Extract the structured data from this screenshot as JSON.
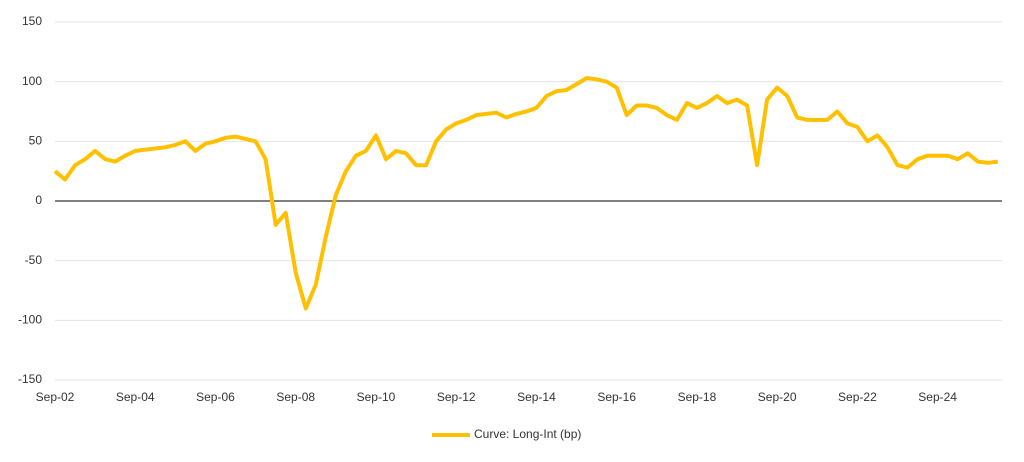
{
  "chart_data": {
    "type": "line",
    "categories": [
      "Sep-02",
      null,
      null,
      null,
      null,
      null,
      null,
      null,
      "Sep-04",
      null,
      null,
      null,
      null,
      null,
      null,
      null,
      "Sep-06",
      null,
      null,
      null,
      null,
      null,
      null,
      null,
      "Sep-08",
      null,
      null,
      null,
      null,
      null,
      null,
      null,
      "Sep-10",
      null,
      null,
      null,
      null,
      null,
      null,
      null,
      "Sep-12",
      null,
      null,
      null,
      null,
      null,
      null,
      null,
      "Sep-14",
      null,
      null,
      null,
      null,
      null,
      null,
      null,
      "Sep-16",
      null,
      null,
      null,
      null,
      null,
      null,
      null,
      "Sep-18",
      null,
      null,
      null,
      null,
      null,
      null,
      null,
      "Sep-20",
      null,
      null,
      null,
      null,
      null,
      null,
      null,
      "Sep-22",
      null,
      null,
      null,
      null,
      null,
      null,
      null,
      "Sep-24",
      null,
      null,
      null,
      null,
      null,
      null
    ],
    "series": [
      {
        "name": "Curve: Long-Int (bp)",
        "color": "#FFC000",
        "values": [
          25,
          18,
          30,
          35,
          42,
          35,
          33,
          38,
          42,
          43,
          44,
          45,
          47,
          50,
          42,
          48,
          50,
          53,
          54,
          52,
          50,
          35,
          -20,
          -10,
          -60,
          -90,
          -70,
          -30,
          5,
          25,
          38,
          42,
          55,
          35,
          42,
          40,
          30,
          30,
          50,
          60,
          65,
          68,
          72,
          73,
          74,
          70,
          73,
          75,
          78,
          88,
          92,
          93,
          98,
          103,
          102,
          100,
          95,
          72,
          80,
          80,
          78,
          72,
          68,
          82,
          78,
          82,
          88,
          82,
          85,
          80,
          30,
          85,
          95,
          88,
          70,
          68,
          68,
          68,
          75,
          65,
          62,
          50,
          55,
          45,
          30,
          28,
          35,
          38,
          38,
          38,
          35,
          40,
          33,
          32,
          33
        ]
      }
    ],
    "ylim": [
      -150,
      150
    ],
    "yticks": [
      -150,
      -100,
      -50,
      0,
      50,
      100,
      150
    ],
    "grid": true,
    "legend": "bottom"
  }
}
